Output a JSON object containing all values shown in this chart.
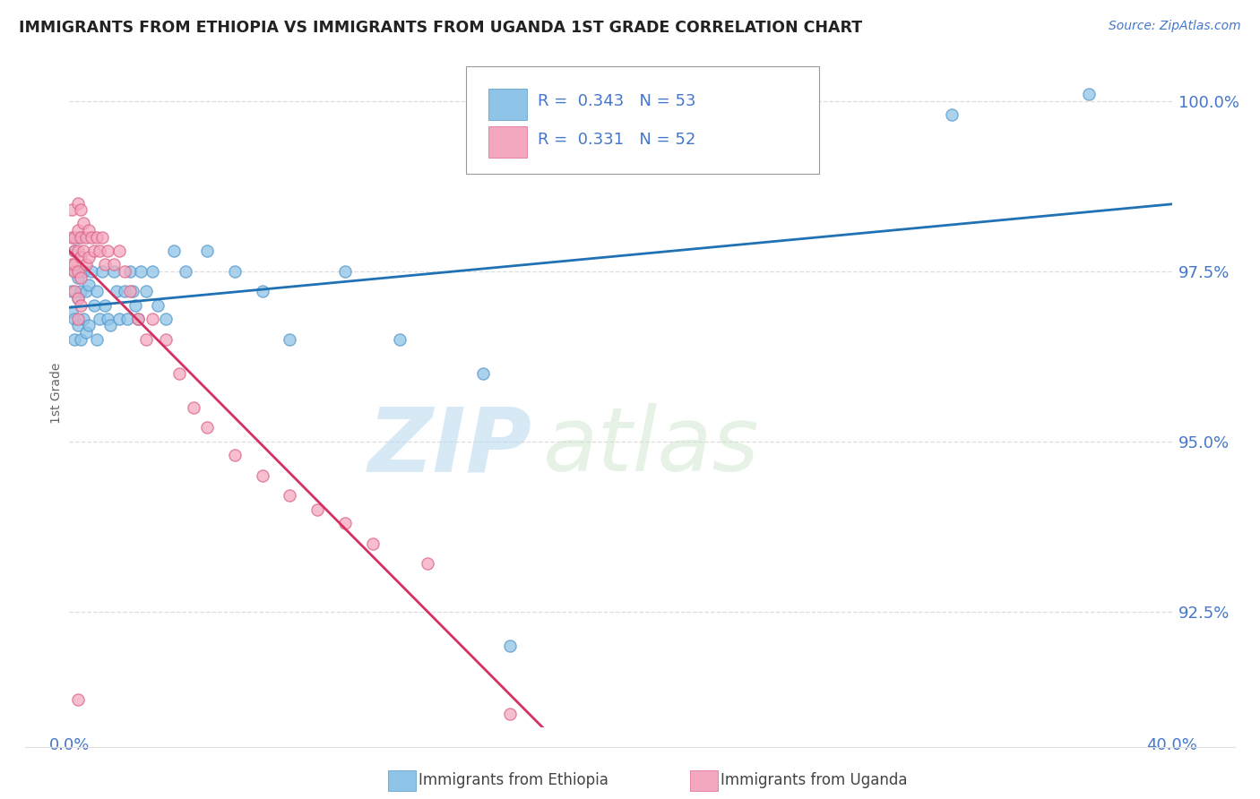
{
  "title": "IMMIGRANTS FROM ETHIOPIA VS IMMIGRANTS FROM UGANDA 1ST GRADE CORRELATION CHART",
  "source": "Source: ZipAtlas.com",
  "ylabel": "1st Grade",
  "legend_label1": "Immigrants from Ethiopia",
  "legend_label2": "Immigrants from Uganda",
  "R1": 0.343,
  "N1": 53,
  "R2": 0.331,
  "N2": 52,
  "color1": "#8ec4e8",
  "color2": "#f4a8bf",
  "line_color1": "#2171b5",
  "line_color2": "#d63060",
  "bg_color": "#ffffff",
  "grid_color": "#cccccc",
  "axis_label_color": "#4477cc",
  "title_color": "#222222",
  "watermark_zip": "ZIP",
  "watermark_atlas": "atlas",
  "xlim": [
    0.0,
    0.4
  ],
  "ylim": [
    0.908,
    1.006
  ],
  "yticks": [
    0.925,
    0.95,
    0.975,
    1.0
  ],
  "ytick_labels": [
    "92.5%",
    "95.0%",
    "97.5%",
    "100.0%"
  ],
  "scatter1_x": [
    0.001,
    0.001,
    0.002,
    0.002,
    0.002,
    0.002,
    0.003,
    0.003,
    0.003,
    0.003,
    0.004,
    0.004,
    0.005,
    0.005,
    0.006,
    0.006,
    0.007,
    0.007,
    0.008,
    0.009,
    0.01,
    0.01,
    0.011,
    0.012,
    0.013,
    0.014,
    0.015,
    0.016,
    0.017,
    0.018,
    0.02,
    0.021,
    0.022,
    0.023,
    0.024,
    0.025,
    0.026,
    0.028,
    0.03,
    0.032,
    0.035,
    0.038,
    0.042,
    0.05,
    0.06,
    0.07,
    0.08,
    0.1,
    0.12,
    0.15,
    0.16,
    0.32,
    0.37
  ],
  "scatter1_y": [
    0.972,
    0.969,
    0.975,
    0.968,
    0.965,
    0.978,
    0.971,
    0.967,
    0.974,
    0.98,
    0.972,
    0.965,
    0.975,
    0.968,
    0.972,
    0.966,
    0.973,
    0.967,
    0.975,
    0.97,
    0.972,
    0.965,
    0.968,
    0.975,
    0.97,
    0.968,
    0.967,
    0.975,
    0.972,
    0.968,
    0.972,
    0.968,
    0.975,
    0.972,
    0.97,
    0.968,
    0.975,
    0.972,
    0.975,
    0.97,
    0.968,
    0.978,
    0.975,
    0.978,
    0.975,
    0.972,
    0.965,
    0.975,
    0.965,
    0.96,
    0.92,
    0.998,
    1.001
  ],
  "scatter2_x": [
    0.001,
    0.001,
    0.001,
    0.002,
    0.002,
    0.002,
    0.002,
    0.002,
    0.003,
    0.003,
    0.003,
    0.003,
    0.003,
    0.003,
    0.004,
    0.004,
    0.004,
    0.004,
    0.004,
    0.005,
    0.005,
    0.006,
    0.006,
    0.007,
    0.007,
    0.008,
    0.009,
    0.01,
    0.011,
    0.012,
    0.013,
    0.014,
    0.016,
    0.018,
    0.02,
    0.022,
    0.025,
    0.028,
    0.03,
    0.035,
    0.04,
    0.045,
    0.05,
    0.06,
    0.07,
    0.08,
    0.09,
    0.1,
    0.11,
    0.13,
    0.16,
    0.003
  ],
  "scatter2_y": [
    0.98,
    0.976,
    0.984,
    0.978,
    0.975,
    0.98,
    0.976,
    0.972,
    0.985,
    0.981,
    0.978,
    0.975,
    0.971,
    0.968,
    0.984,
    0.98,
    0.977,
    0.974,
    0.97,
    0.982,
    0.978,
    0.98,
    0.976,
    0.981,
    0.977,
    0.98,
    0.978,
    0.98,
    0.978,
    0.98,
    0.976,
    0.978,
    0.976,
    0.978,
    0.975,
    0.972,
    0.968,
    0.965,
    0.968,
    0.965,
    0.96,
    0.955,
    0.952,
    0.948,
    0.945,
    0.942,
    0.94,
    0.938,
    0.935,
    0.932,
    0.91,
    0.912
  ]
}
